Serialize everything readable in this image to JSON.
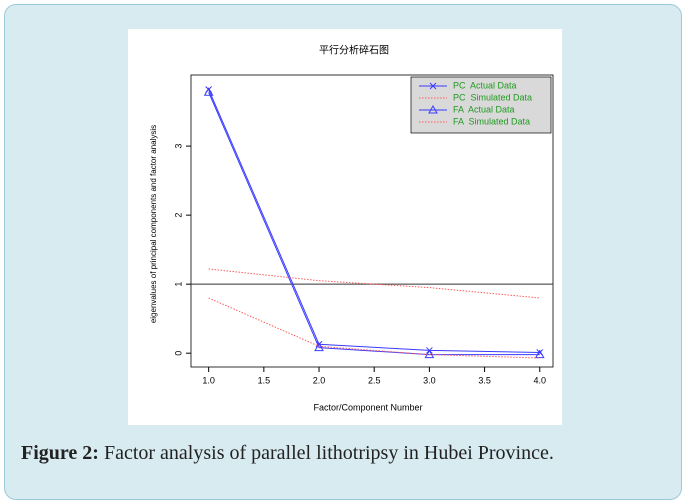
{
  "chart_data": {
    "type": "line",
    "title": "平行分析碎石图",
    "x_label": "Factor/Component Number",
    "y_label": "eigenvalues of principal components and factor analysis",
    "x": [
      1,
      2,
      3,
      4
    ],
    "series": [
      {
        "name": "PC  Actual Data",
        "color": "#3b3bff",
        "marker": "x",
        "linestyle": "solid",
        "values": [
          3.82,
          0.13,
          0.04,
          0.01
        ]
      },
      {
        "name": "PC  Simulated Data",
        "color": "#ff5a5a",
        "marker": null,
        "linestyle": "dotted",
        "values": [
          1.22,
          1.05,
          0.95,
          0.8
        ]
      },
      {
        "name": "FA  Actual Data",
        "color": "#3b3bff",
        "marker": "triangle",
        "linestyle": "solid",
        "values": [
          3.78,
          0.08,
          -0.02,
          -0.02
        ]
      },
      {
        "name": "FA  Simulated Data",
        "color": "#ff5a5a",
        "marker": null,
        "linestyle": "dotted",
        "values": [
          0.8,
          0.1,
          -0.02,
          -0.07
        ]
      }
    ],
    "hline": 1,
    "xlim": [
      0.84,
      4.12
    ],
    "ylim": [
      -0.2,
      4.03
    ],
    "xticks": [
      {
        "value": 1,
        "label": "1.0"
      },
      {
        "value": 1.5,
        "label": "1.5"
      },
      {
        "value": 2,
        "label": "2.0"
      },
      {
        "value": 2.5,
        "label": "2.5"
      },
      {
        "value": 3,
        "label": "3.0"
      },
      {
        "value": 3.5,
        "label": "3.5"
      },
      {
        "value": 4,
        "label": "4.0"
      }
    ],
    "yticks": [
      0,
      1,
      2,
      3
    ],
    "legend": "top-right",
    "legend_text_color": "#1f9a1f"
  },
  "caption": {
    "label": "Figure 2:",
    "text": "Factor analysis of parallel lithotripsy in Hubei Province."
  }
}
